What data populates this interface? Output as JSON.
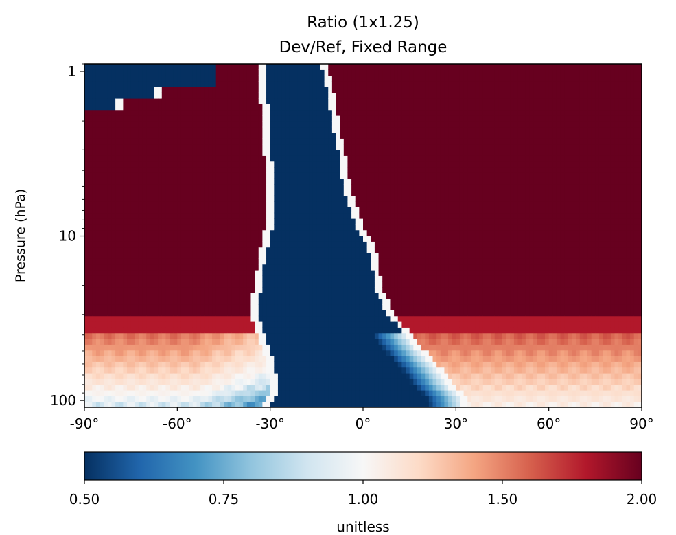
{
  "chart_data": {
    "type": "heatmap",
    "title": "Ratio (1x1.25)",
    "subtitle": "Dev/Ref, Fixed Range",
    "xlabel": "",
    "ylabel": "Pressure (hPa)",
    "x_range": [
      -90,
      90
    ],
    "x_ticks": [
      -90,
      -60,
      -30,
      0,
      30,
      60,
      90
    ],
    "x_tick_labels": [
      "-90°",
      "-60°",
      "-30°",
      "0°",
      "30°",
      "60°",
      "90°"
    ],
    "y_scale": "log",
    "y_range_hPa": [
      110,
      0.9
    ],
    "y_ticks": [
      1,
      10,
      100
    ],
    "y_tick_labels": [
      "1",
      "10",
      "100"
    ],
    "colorbar": {
      "label": "unitless",
      "range": [
        0.5,
        2.0
      ],
      "ticks": [
        0.5,
        0.75,
        1.0,
        1.5,
        2.0
      ],
      "tick_labels": [
        "0.50",
        "0.75",
        "1.00",
        "1.50",
        "2.00"
      ],
      "colormap": "RdBu_r",
      "colors": [
        "#053061",
        "#2166ac",
        "#4393c3",
        "#92c5de",
        "#d1e5f0",
        "#f7f7f7",
        "#fddbc7",
        "#f4a582",
        "#d6604d",
        "#b2182b",
        "#67001f"
      ]
    },
    "regions": {
      "pressure_levels_hPa": [
        100,
        90,
        80,
        70,
        60,
        50,
        40,
        30,
        25,
        20,
        15,
        12,
        10,
        8,
        6,
        5,
        4,
        3,
        2.5,
        2,
        1.5,
        1.2,
        1
      ],
      "low_ratio_core_left_edge_deg": [
        -31,
        -29,
        -28,
        -29,
        -30,
        -31,
        -33,
        -35,
        -35,
        -34,
        -33,
        -32,
        -31,
        -30,
        -30,
        -30,
        -30,
        -31,
        -31,
        -31,
        -32,
        -33,
        -33
      ],
      "low_ratio_core_right_edge_deg": [
        33,
        31,
        28,
        26,
        23,
        19,
        15,
        9,
        7,
        5,
        4,
        3,
        1,
        -2,
        -4,
        -5,
        -6,
        -7,
        -8,
        -9,
        -10,
        -11,
        -12
      ],
      "lower_band_top_hPa": 40,
      "upper_left_low_ratio_patch": {
        "lat_extent_deg": [
          -90,
          -47
        ],
        "pressure_hPa": [
          0.9,
          1.7
        ]
      }
    }
  }
}
